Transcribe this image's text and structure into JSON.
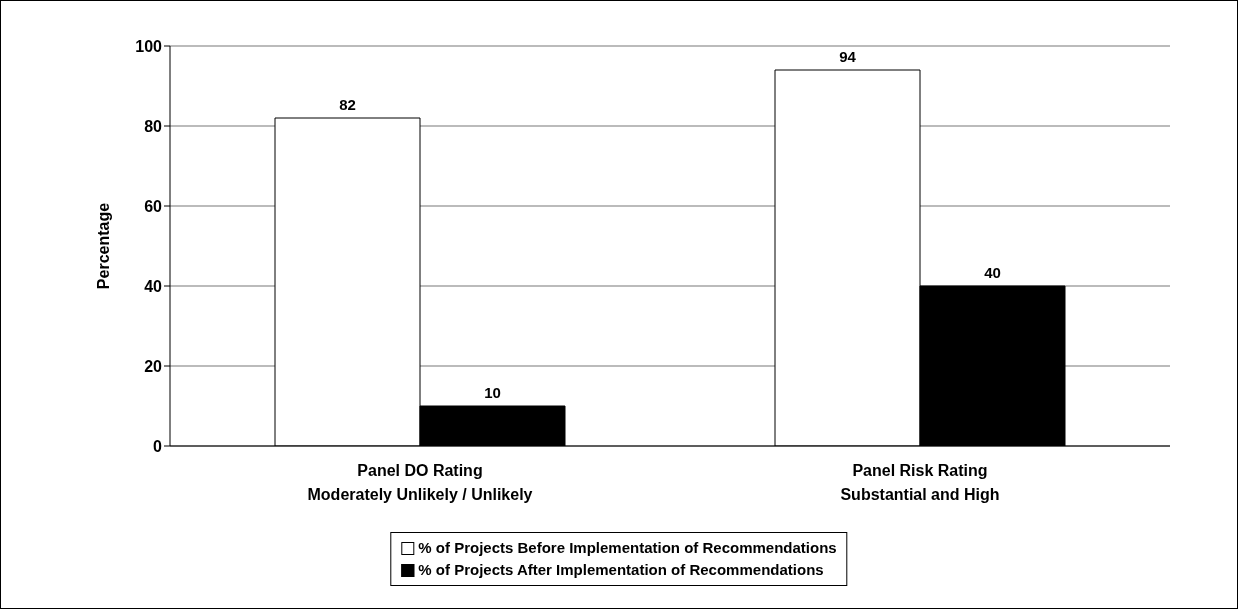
{
  "chart_data": {
    "type": "bar",
    "ylabel": "Percentage",
    "categories": [
      "Panel DO Rating\nModerately Unlikely / Unlikely",
      "Panel Risk Rating\nSubstantial and High"
    ],
    "series": [
      {
        "name": "% of Projects Before Implementation of Recommendations",
        "color": "#ffffff",
        "values": [
          82,
          94
        ]
      },
      {
        "name": "% of Projects After Implementation of Recommendations",
        "color": "#000000",
        "values": [
          10,
          40
        ]
      }
    ],
    "ylim": [
      0,
      100
    ],
    "yticks": [
      0,
      20,
      40,
      60,
      80,
      100
    ],
    "grid": "y",
    "legend": "bottom",
    "data_labels": true
  }
}
